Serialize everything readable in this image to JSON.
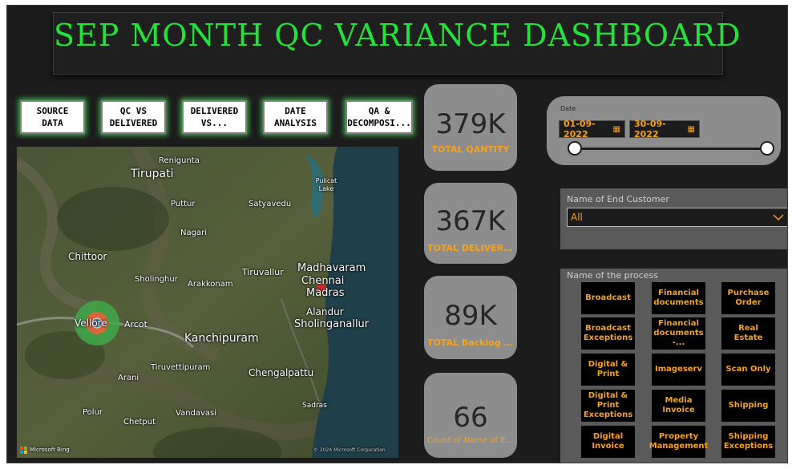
{
  "title": "SEP MONTH QC VARIANCE DASHBOARD",
  "nav": [
    {
      "label": "SOURCE\nDATA"
    },
    {
      "label": "QC VS\nDELIVERED"
    },
    {
      "label": "DELIVERED\nVS..."
    },
    {
      "label": "DATE\nANALYSIS"
    },
    {
      "label": "QA &\nDECOMPOSI..."
    }
  ],
  "map": {
    "labels": [
      "Renigunta",
      "Tirupati",
      "Pulicat Lake",
      "Puttur",
      "Satyavedu",
      "Nagari",
      "Chittoor",
      "Tiruvallur",
      "Madhavaram",
      "Chennai",
      "Madras",
      "Sholinghur",
      "Arakkonam",
      "Alandur",
      "Sholinganallur",
      "Vellore",
      "Arcot",
      "Kanchipuram",
      "Tiruvettipuram",
      "Chengalpattu",
      "Arani",
      "Sadras",
      "Polur",
      "Vandavasi",
      "Chetput"
    ],
    "brand": "Microsoft Bing",
    "copyright": "© 2024 Microsoft Corporation"
  },
  "kpis": [
    {
      "value": "379K",
      "label": "TOTAL QANTITY"
    },
    {
      "value": "367K",
      "label": "TOTAL DELIVERED"
    },
    {
      "value": "89K",
      "label": "TOTAL  Backlog (E..."
    },
    {
      "value": "66",
      "label": "Count of Name of End Cu..."
    }
  ],
  "date_slicer": {
    "label": "Date",
    "start": "01-09-2022",
    "end": "30-09-2022",
    "start_pct": 0,
    "end_pct": 100,
    "icon": "calendar-icon"
  },
  "customer_slicer": {
    "label": "Name of End Customer",
    "selected": "All"
  },
  "process_slicer": {
    "label": "Name of the process",
    "items": [
      "Broadcast",
      "Financial documents",
      "Purchase Order",
      "Broadcast Exceptions",
      "Financial documents -...",
      "Real Estate",
      "Digital & Print",
      "Imageserv",
      "Scan Only",
      "Digital & Print Exceptions",
      "Media Invoice",
      "Shipping",
      "Digital Invoice",
      "Property Management",
      "Shipping Exceptions"
    ]
  },
  "colors": {
    "title_green": "#22e33a",
    "accent_orange": "#f7a21b",
    "card_grey": "#8d8d8d",
    "panel_grey": "#5a5a5a",
    "background": "#1c1c1c"
  }
}
